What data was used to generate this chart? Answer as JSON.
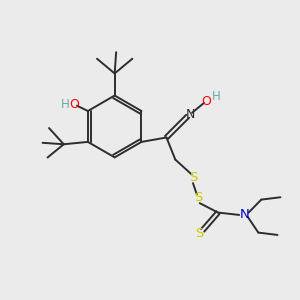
{
  "bg_color": "#ebebeb",
  "bond_color": "#2d2d2d",
  "atom_colors": {
    "O": "#ff0000",
    "N": "#0000cc",
    "S": "#cccc00",
    "H_teal": "#66aaaa",
    "C": "#2d2d2d"
  },
  "figsize": [
    3.0,
    3.0
  ],
  "dpi": 100
}
